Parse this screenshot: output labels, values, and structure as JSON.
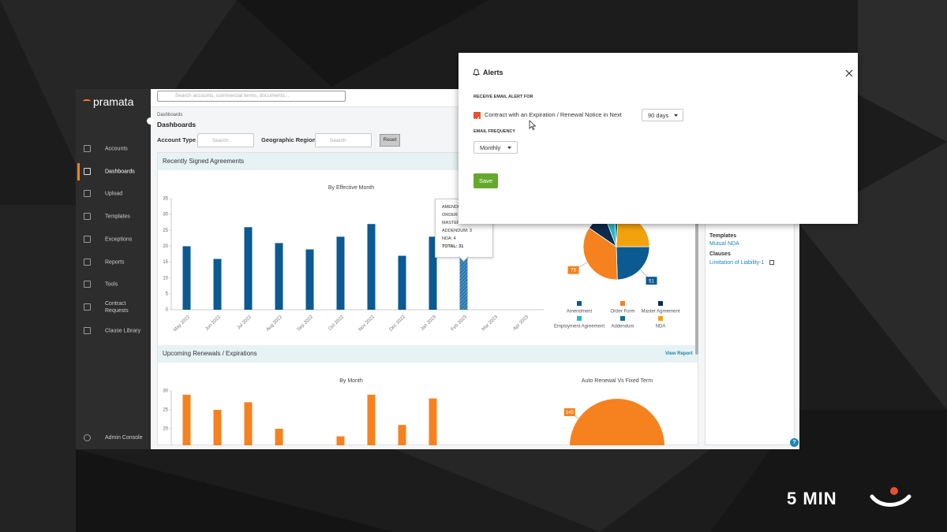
{
  "brand": "pramata",
  "search_placeholder": "Search accounts, commercial terms, documents...",
  "nav": [
    "Accounts",
    "Dashboards",
    "Upload",
    "Templates",
    "Exceptions",
    "Reports",
    "Tools",
    "Contract Requests",
    "Clause Library"
  ],
  "admin": "Admin Console",
  "breadcrumb": "Dashboards",
  "title": "Dashboards",
  "filters": {
    "account_type": "Account Type",
    "account_search": "Search",
    "region": "Geographic Region",
    "region_search": "Search",
    "reset": "Reset"
  },
  "recent": {
    "heading": "Recently Signed Agreements",
    "bar": {
      "type": "bar",
      "title": "By Effective Month",
      "categories": [
        "May 2022",
        "Jun 2022",
        "Jul 2022",
        "Aug 2022",
        "Sep 2022",
        "Oct 2022",
        "Nov 2022",
        "Dec 2022",
        "Jan 2023",
        "Feb 2023",
        "Mar 2023",
        "Apr 2023"
      ],
      "values": [
        20,
        16,
        26,
        21,
        19,
        23,
        27,
        17,
        23,
        31,
        null,
        null
      ],
      "color": "#0b5a91",
      "highlight_category": "Feb 2023",
      "ylim": [
        0,
        35
      ],
      "yticks": [
        0,
        5,
        10,
        15,
        20,
        25,
        30,
        35
      ]
    },
    "tooltip": [
      "AMENDME",
      "ORDER F",
      "MASTER",
      "ADDENDUM: 3",
      "NDA: 4",
      "TOTAL: 31"
    ],
    "pie": {
      "type": "pie",
      "categories": [
        "Amendment",
        "Order Form",
        "Master Agreement",
        "Employment Agreement",
        "Addendum",
        "NDA"
      ],
      "values": [
        51,
        73,
        20,
        10,
        4,
        50
      ],
      "value_labels": [
        "51",
        "73",
        null,
        null,
        null,
        null
      ],
      "colors": [
        "#0b5a91",
        "#f5821f",
        "#0c2b4e",
        "#2bb6c4",
        "#0b7480",
        "#f2a20c"
      ]
    }
  },
  "renewals": {
    "heading": "Upcoming Renewals / Expirations",
    "link": "View Report",
    "bar": {
      "type": "bar",
      "title": "By Month",
      "categories": [
        null,
        null,
        null,
        null,
        null,
        null,
        null,
        null,
        null,
        null,
        null,
        null
      ],
      "values": [
        29,
        25,
        27,
        20,
        null,
        18,
        29,
        21,
        28,
        null,
        null,
        null
      ],
      "color": "#f5821f",
      "ylim": [
        0,
        30
      ],
      "yticks": [
        20,
        25,
        30
      ]
    },
    "pie": {
      "type": "pie",
      "title": "Auto Renewal Vs Fixed Term",
      "values": [
        145
      ],
      "colors": [
        "#f5821f"
      ]
    }
  },
  "side": {
    "templates_heading": "Templates",
    "template": "Mutual NDA",
    "clauses_heading": "Clauses",
    "clause": "Limitation of Liability-1",
    "help": "?"
  },
  "modal": {
    "title": "Alerts",
    "section": "RECEIVE EMAIL ALERT FOR",
    "checkbox": "Contract with an Expiration / Renewal Notice in Next",
    "period": "90 days",
    "frequency_label": "EMAIL FREQUENCY",
    "frequency": "Monthly",
    "save": "Save"
  },
  "badge": "5 MIN"
}
